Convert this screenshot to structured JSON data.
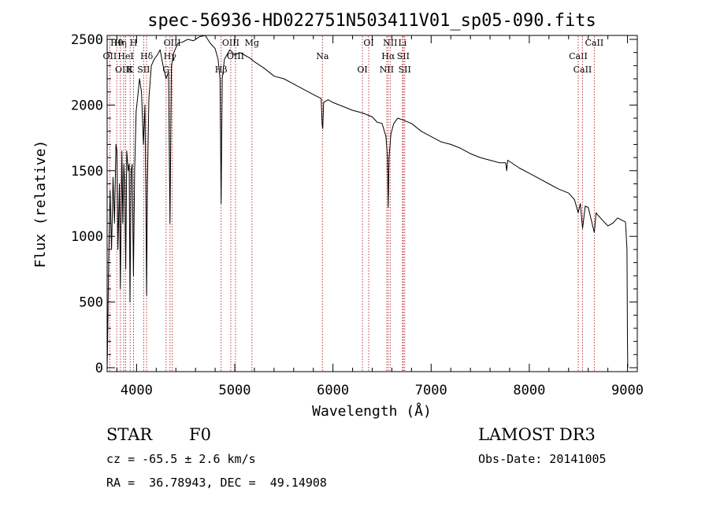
{
  "chart_data": {
    "type": "line",
    "title": "spec-56936-HD022751N503411V01_sp05-090.fits",
    "xlabel": "Wavelength (Å)",
    "ylabel": "Flux (relative)",
    "xlim": [
      3700,
      9100
    ],
    "ylim": [
      -30,
      2530
    ],
    "xticks": [
      4000,
      5000,
      6000,
      7000,
      8000,
      9000
    ],
    "xtick_labels": [
      "4000",
      "5000",
      "6000",
      "7000",
      "8000",
      "9000"
    ],
    "yticks": [
      0,
      500,
      1000,
      1500,
      2000,
      2500
    ],
    "ytick_labels": [
      "0",
      "500",
      "1000",
      "1500",
      "2000",
      "2500"
    ],
    "grid": false,
    "series": [
      {
        "name": "spectrum",
        "x": [
          3700,
          3705,
          3715,
          3730,
          3745,
          3760,
          3775,
          3790,
          3800,
          3810,
          3825,
          3835,
          3850,
          3860,
          3870,
          3880,
          3889,
          3900,
          3915,
          3925,
          3933,
          3945,
          3955,
          3968,
          3980,
          3995,
          4010,
          4030,
          4050,
          4070,
          4085,
          4095,
          4102,
          4110,
          4125,
          4150,
          4180,
          4210,
          4240,
          4270,
          4300,
          4325,
          4340,
          4355,
          4380,
          4420,
          4470,
          4520,
          4580,
          4640,
          4700,
          4750,
          4800,
          4830,
          4850,
          4861,
          4872,
          4895,
          4950,
          5000,
          5050,
          5100,
          5150,
          5200,
          5300,
          5400,
          5500,
          5600,
          5700,
          5800,
          5880,
          5890,
          5896,
          5905,
          5950,
          6000,
          6100,
          6200,
          6300,
          6400,
          6450,
          6500,
          6540,
          6555,
          6563,
          6572,
          6590,
          6620,
          6660,
          6700,
          6800,
          6900,
          7000,
          7100,
          7200,
          7300,
          7400,
          7500,
          7600,
          7700,
          7760,
          7770,
          7780,
          7900,
          8000,
          8100,
          8200,
          8300,
          8400,
          8460,
          8498,
          8520,
          8542,
          8570,
          8600,
          8662,
          8680,
          8700,
          8750,
          8800,
          8850,
          8900,
          8950,
          8980,
          8995,
          9000,
          9003
        ],
        "values": [
          0,
          200,
          800,
          1350,
          900,
          1450,
          1100,
          1700,
          1650,
          900,
          1400,
          600,
          1650,
          1100,
          1550,
          1400,
          750,
          1650,
          1500,
          1550,
          500,
          1500,
          1550,
          700,
          1500,
          1950,
          2050,
          2200,
          2100,
          1700,
          2000,
          1300,
          550,
          1400,
          2050,
          2300,
          2350,
          2380,
          2420,
          2300,
          2200,
          2250,
          1100,
          2300,
          2400,
          2470,
          2480,
          2500,
          2490,
          2520,
          2530,
          2470,
          2430,
          2350,
          2200,
          1250,
          2200,
          2350,
          2420,
          2380,
          2400,
          2380,
          2360,
          2330,
          2280,
          2220,
          2200,
          2160,
          2120,
          2080,
          2050,
          1850,
          1820,
          2020,
          2040,
          2020,
          1990,
          1960,
          1940,
          1910,
          1870,
          1860,
          1760,
          1600,
          1220,
          1600,
          1780,
          1860,
          1900,
          1890,
          1860,
          1800,
          1760,
          1720,
          1700,
          1670,
          1630,
          1600,
          1580,
          1560,
          1560,
          1500,
          1580,
          1520,
          1480,
          1440,
          1400,
          1360,
          1330,
          1280,
          1180,
          1250,
          1060,
          1230,
          1220,
          1030,
          1180,
          1160,
          1120,
          1080,
          1100,
          1140,
          1120,
          1110,
          900,
          200,
          0
        ]
      }
    ],
    "line_markers": [
      {
        "label": "Hθ",
        "x": 3798
      },
      {
        "label": "OII",
        "x": 3727
      },
      {
        "label": "OIII",
        "x": 3869
      },
      {
        "label": "Hη",
        "x": 3835
      },
      {
        "label": "HeI",
        "x": 3889
      },
      {
        "label": "K",
        "x": 3934
      },
      {
        "label": "H",
        "x": 3969
      },
      {
        "label": "Hδ",
        "x": 4102
      },
      {
        "label": "SII",
        "x": 4072
      },
      {
        "label": "OIII",
        "x": 4363
      },
      {
        "label": "Hγ",
        "x": 4340
      },
      {
        "label": "G",
        "x": 4300
      },
      {
        "label": "OIII",
        "x": 4959
      },
      {
        "label": "OIII",
        "x": 5007
      },
      {
        "label": "Hβ",
        "x": 4861
      },
      {
        "label": "Mg",
        "x": 5175
      },
      {
        "label": "Na",
        "x": 5893
      },
      {
        "label": "OI",
        "x": 6300
      },
      {
        "label": "OI",
        "x": 6364
      },
      {
        "label": "Hα",
        "x": 6563
      },
      {
        "label": "NII",
        "x": 6548
      },
      {
        "label": "NII",
        "x": 6583
      },
      {
        "label": "SII",
        "x": 6716
      },
      {
        "label": "SII",
        "x": 6731
      },
      {
        "label": "Li",
        "x": 6708
      },
      {
        "label": "CaII",
        "x": 8498
      },
      {
        "label": "CaII",
        "x": 8542
      },
      {
        "label": "CaII",
        "x": 8662
      }
    ]
  },
  "info": {
    "object_class": "STAR",
    "subclass": "F0",
    "survey": "LAMOST DR3",
    "redshift": "cz = -65.5 ± 2.6 km/s",
    "obs_date": "Obs-Date: 20141005",
    "coords": "RA =  36.78943, DEC =  49.14908"
  },
  "colors": {
    "line_marker": "#b22222",
    "spectrum": "#000000",
    "axes": "#000000"
  }
}
